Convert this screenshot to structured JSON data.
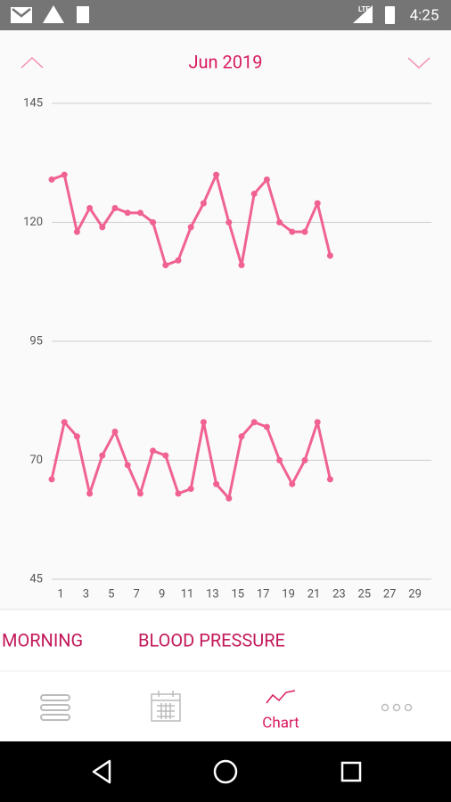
{
  "status_bar": {
    "network": "LTE",
    "time": "4:25"
  },
  "header": {
    "title": "Jun 2019"
  },
  "chart_data": {
    "type": "line",
    "x": [
      1,
      2,
      3,
      4,
      5,
      6,
      7,
      8,
      9,
      10,
      11,
      12,
      13,
      14,
      15,
      16,
      17,
      18,
      19,
      20,
      21,
      22,
      23
    ],
    "series": [
      {
        "color": "#f06292",
        "values": [
          129,
          130,
          118,
          123,
          119,
          123,
          122,
          122,
          120,
          111,
          112,
          119,
          124,
          130,
          120,
          111,
          126,
          129,
          120,
          118,
          118,
          124,
          113
        ]
      },
      {
        "color": "#f06292",
        "values": [
          66,
          78,
          75,
          63,
          71,
          76,
          69,
          63,
          72,
          71,
          63,
          64,
          78,
          65,
          62,
          75,
          78,
          77,
          70,
          65,
          70,
          78,
          66
        ]
      }
    ],
    "xlim": [
      1,
      31
    ],
    "xticks": [
      1,
      3,
      5,
      7,
      9,
      11,
      13,
      15,
      17,
      19,
      21,
      23,
      25,
      27,
      29
    ],
    "ylim": [
      45,
      145
    ],
    "yticks": [
      45,
      70,
      95,
      120,
      145
    ],
    "grid": true
  },
  "tabs": [
    "MORNING",
    "BLOOD PRESSURE"
  ],
  "nav": {
    "active_label": "Chart"
  }
}
